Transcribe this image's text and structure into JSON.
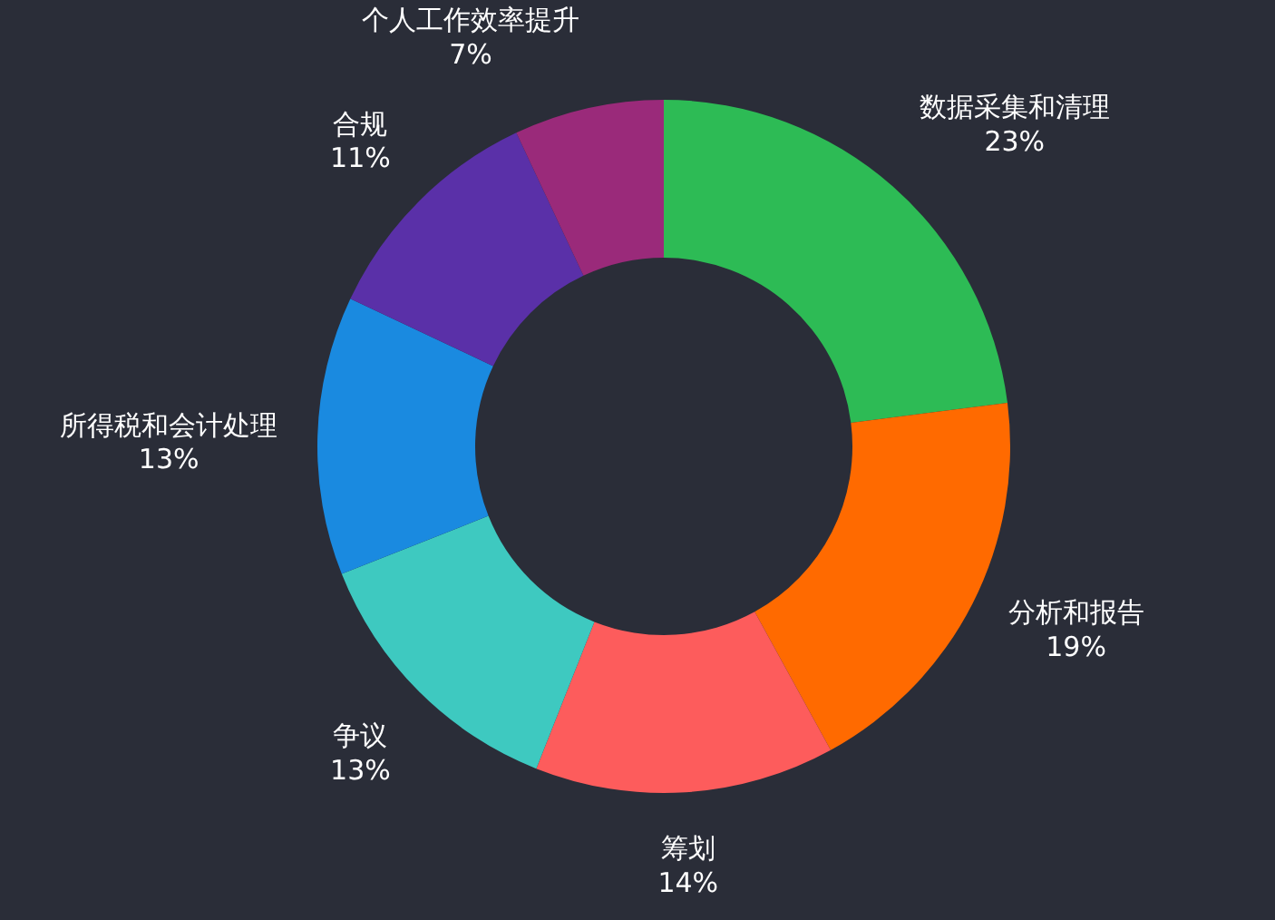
{
  "chart_data": {
    "type": "donut",
    "categories": [
      "数据采集和清理",
      "分析和报告",
      "筹划",
      "争议",
      "所得税和会计处理",
      "合规",
      "个人工作效率提升"
    ],
    "values": [
      23,
      19,
      14,
      13,
      13,
      11,
      7
    ],
    "value_labels": [
      "23%",
      "19%",
      "14%",
      "13%",
      "13%",
      "11%",
      "7%"
    ],
    "colors": [
      "#2dbb55",
      "#ff6a00",
      "#fd5c5c",
      "#3ec9c0",
      "#1a8ae0",
      "#5a30a8",
      "#9a2a7a"
    ]
  }
}
